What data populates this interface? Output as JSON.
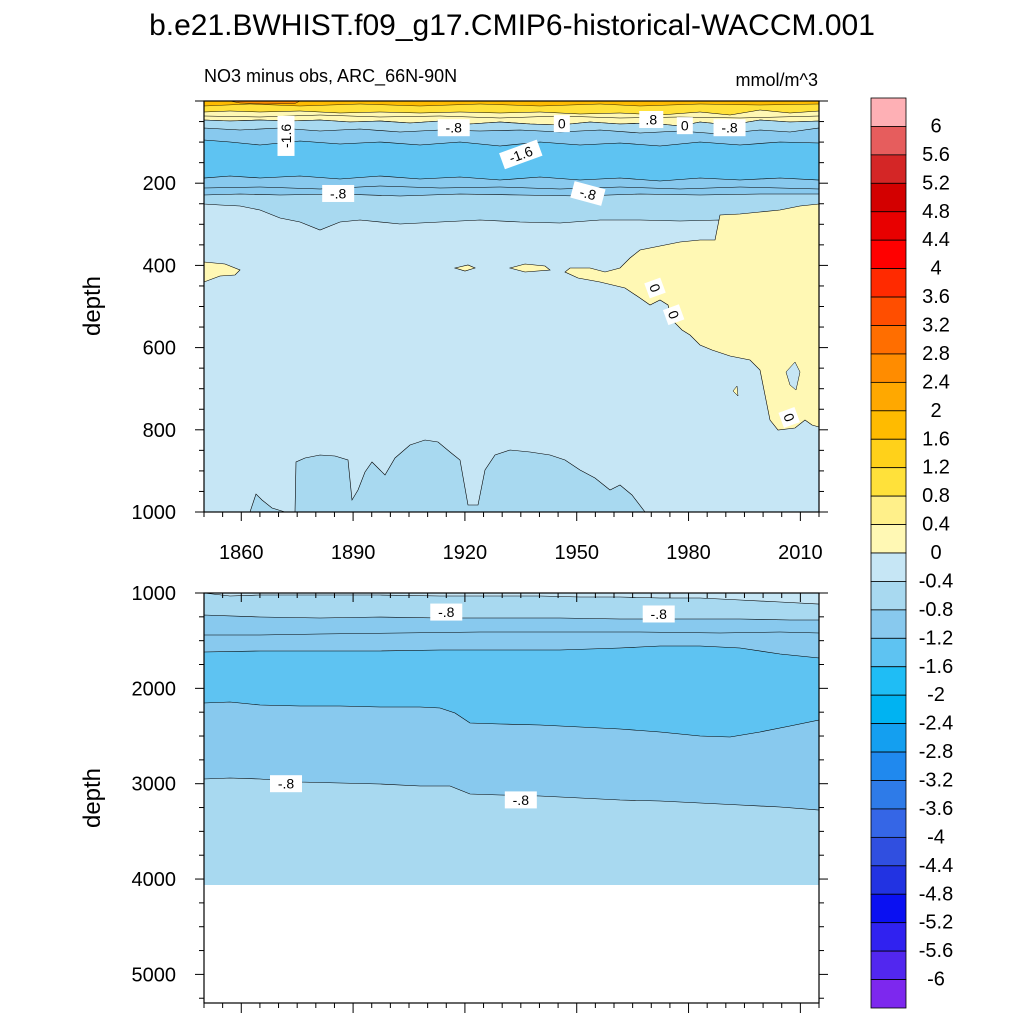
{
  "title": "b.e21.BWHIST.f09_g17.CMIP6-historical-WACCM.001",
  "subtitle_left": "NO3 minus obs, ARC_66N-90N",
  "subtitle_right": "mmol/m^3",
  "chart_data": [
    {
      "type": "contour",
      "panel": "upper",
      "xlabel": "",
      "ylabel": "depth",
      "xlim": [
        1850,
        2015
      ],
      "ylim": [
        1000,
        0
      ],
      "x_ticks": [
        1860,
        1890,
        1920,
        1950,
        1980,
        2010
      ],
      "y_ticks": [
        200,
        400,
        600,
        800,
        1000
      ],
      "contour_labels": [
        {
          "text": "-1.6",
          "x": 1872,
          "y": 85,
          "rotate": -90
        },
        {
          "text": "-.8",
          "x": 1917,
          "y": 65
        },
        {
          "text": "0",
          "x": 1946,
          "y": 55
        },
        {
          "text": ".8",
          "x": 1970,
          "y": 45
        },
        {
          "text": "0",
          "x": 1979,
          "y": 60
        },
        {
          "text": "-.8",
          "x": 1991,
          "y": 65
        },
        {
          "text": "-1.6",
          "x": 1935,
          "y": 130,
          "rotate": -20
        },
        {
          "text": "-.8",
          "x": 1886,
          "y": 225
        },
        {
          "text": "-.8",
          "x": 1953,
          "y": 225,
          "rotate": 15
        },
        {
          "text": "0",
          "x": 1971,
          "y": 455,
          "rotate": 70
        },
        {
          "text": "0",
          "x": 1976,
          "y": 520,
          "rotate": 70
        },
        {
          "text": "0",
          "x": 2007,
          "y": 770,
          "rotate": 70
        }
      ]
    },
    {
      "type": "contour",
      "panel": "lower",
      "xlabel": "",
      "ylabel": "depth",
      "xlim": [
        1850,
        2015
      ],
      "ylim": [
        5300,
        1000
      ],
      "y_ticks": [
        1000,
        2000,
        3000,
        4000,
        5000
      ],
      "bottom_depth": 4120,
      "contour_labels": [
        {
          "text": "-.8",
          "x": 1915,
          "y": 1200
        },
        {
          "text": "-.8",
          "x": 1972,
          "y": 1220
        },
        {
          "text": "-.8",
          "x": 1872,
          "y": 3000
        },
        {
          "text": "-.8",
          "x": 1935,
          "y": 3170
        }
      ]
    }
  ],
  "colorbar": {
    "labels": [
      "6",
      "5.6",
      "5.2",
      "4.8",
      "4.4",
      "4",
      "3.6",
      "3.2",
      "2.8",
      "2.4",
      "2",
      "1.6",
      "1.2",
      "0.8",
      "0.4",
      "0",
      "-0.4",
      "-0.8",
      "-1.2",
      "-1.6",
      "-2",
      "-2.4",
      "-2.8",
      "-3.2",
      "-3.6",
      "-4",
      "-4.4",
      "-4.8",
      "-5.2",
      "-5.6",
      "-6"
    ],
    "colors": [
      "#feb0b5",
      "#e65d5d",
      "#d42626",
      "#d30000",
      "#e80000",
      "#ff0000",
      "#ff2a00",
      "#ff4e00",
      "#ff6e00",
      "#ff8c00",
      "#ffa800",
      "#ffbb00",
      "#ffd11a",
      "#ffe13a",
      "#fff08a",
      "#fff8b4",
      "#c6e6f5",
      "#a8d9f0",
      "#88c9ee",
      "#5ec3f2",
      "#1fbdf5",
      "#00b3f2",
      "#149ff0",
      "#2089ee",
      "#2e7be8",
      "#3566e6",
      "#304fe0",
      "#2233e2",
      "#0a10f2",
      "#3022f0",
      "#5227ef",
      "#7d28ee"
    ]
  }
}
